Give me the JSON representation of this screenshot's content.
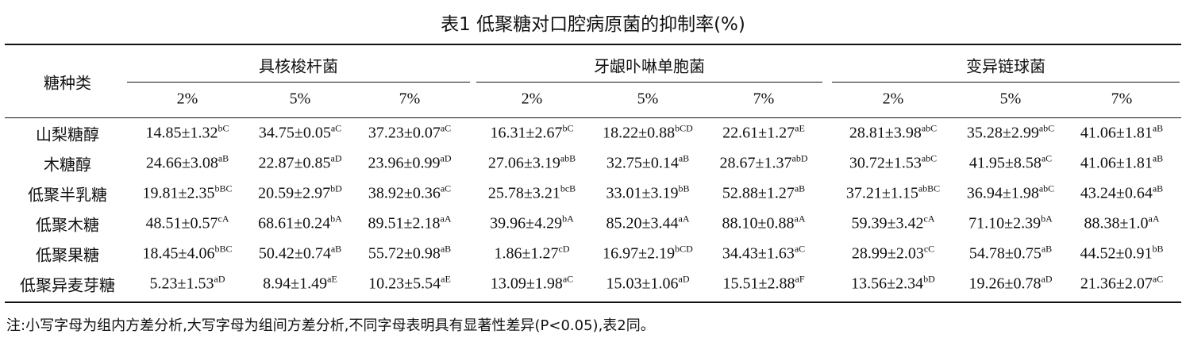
{
  "title": "表1 低聚糖对口腔病原菌的抑制率(%)",
  "table": {
    "row_header": "糖种类",
    "groups": [
      {
        "name": "具核梭杆菌",
        "columns": [
          "2%",
          "5%",
          "7%"
        ]
      },
      {
        "name": "牙龈卟啉单胞菌",
        "columns": [
          "2%",
          "5%",
          "7%"
        ]
      },
      {
        "name": "变异链球菌",
        "columns": [
          "2%",
          "5%",
          "7%"
        ]
      }
    ],
    "rows": [
      {
        "label": "山梨糖醇",
        "cells": [
          {
            "value": "14.85±1.32",
            "sup": "bC"
          },
          {
            "value": "34.75±0.05",
            "sup": "aC"
          },
          {
            "value": "37.23±0.07",
            "sup": "aC"
          },
          {
            "value": "16.31±2.67",
            "sup": "bC"
          },
          {
            "value": "18.22±0.88",
            "sup": "bCD"
          },
          {
            "value": "22.61±1.27",
            "sup": "aE"
          },
          {
            "value": "28.81±3.98",
            "sup": "abC"
          },
          {
            "value": "35.28±2.99",
            "sup": "abC"
          },
          {
            "value": "41.06±1.81",
            "sup": "aB"
          }
        ]
      },
      {
        "label": "木糖醇",
        "cells": [
          {
            "value": "24.66±3.08",
            "sup": "aB"
          },
          {
            "value": "22.87±0.85",
            "sup": "aD"
          },
          {
            "value": "23.96±0.99",
            "sup": "aD"
          },
          {
            "value": "27.06±3.19",
            "sup": "abB"
          },
          {
            "value": "32.75±0.14",
            "sup": "aB"
          },
          {
            "value": "28.67±1.37",
            "sup": "abD"
          },
          {
            "value": "30.72±1.53",
            "sup": "abC"
          },
          {
            "value": "41.95±8.58",
            "sup": "aC"
          },
          {
            "value": "41.06±1.81",
            "sup": "aB"
          }
        ]
      },
      {
        "label": "低聚半乳糖",
        "cells": [
          {
            "value": "19.81±2.35",
            "sup": "bBC"
          },
          {
            "value": "20.59±2.97",
            "sup": "bD"
          },
          {
            "value": "38.92±0.36",
            "sup": "aC"
          },
          {
            "value": "25.78±3.21",
            "sup": "bcB"
          },
          {
            "value": "33.01±3.19",
            "sup": "bB"
          },
          {
            "value": "52.88±1.27",
            "sup": "aB"
          },
          {
            "value": "37.21±1.15",
            "sup": "abBC"
          },
          {
            "value": "36.94±1.98",
            "sup": "abC"
          },
          {
            "value": "43.24±0.64",
            "sup": "aB"
          }
        ]
      },
      {
        "label": "低聚木糖",
        "cells": [
          {
            "value": "48.51±0.57",
            "sup": "cA"
          },
          {
            "value": "68.61±0.24",
            "sup": "bA"
          },
          {
            "value": "89.51±2.18",
            "sup": "aA"
          },
          {
            "value": "39.96±4.29",
            "sup": "bA"
          },
          {
            "value": "85.20±3.44",
            "sup": "aA"
          },
          {
            "value": "88.10±0.88",
            "sup": "aA"
          },
          {
            "value": "59.39±3.42",
            "sup": "cA"
          },
          {
            "value": "71.10±2.39",
            "sup": "bA"
          },
          {
            "value": "88.38±1.0",
            "sup": "aA"
          }
        ]
      },
      {
        "label": "低聚果糖",
        "cells": [
          {
            "value": "18.45±4.06",
            "sup": "bBC"
          },
          {
            "value": "50.42±0.74",
            "sup": "aB"
          },
          {
            "value": "55.72±0.98",
            "sup": "aB"
          },
          {
            "value": "1.86±1.27",
            "sup": "cD"
          },
          {
            "value": "16.97±2.19",
            "sup": "bCD"
          },
          {
            "value": "34.43±1.63",
            "sup": "aC"
          },
          {
            "value": "28.99±2.03",
            "sup": "cC"
          },
          {
            "value": "54.78±0.75",
            "sup": "aB"
          },
          {
            "value": "44.52±0.91",
            "sup": "bB"
          }
        ]
      },
      {
        "label": "低聚异麦芽糖",
        "cells": [
          {
            "value": "5.23±1.53",
            "sup": "aD"
          },
          {
            "value": "8.94±1.49",
            "sup": "aE"
          },
          {
            "value": "10.23±5.54",
            "sup": "aE"
          },
          {
            "value": "13.09±1.98",
            "sup": "aC"
          },
          {
            "value": "15.03±1.06",
            "sup": "aD"
          },
          {
            "value": "15.51±2.88",
            "sup": "aF"
          },
          {
            "value": "13.56±2.34",
            "sup": "bD"
          },
          {
            "value": "19.26±0.78",
            "sup": "aD"
          },
          {
            "value": "21.36±2.07",
            "sup": "aC"
          }
        ]
      }
    ]
  },
  "note": "注:小写字母为组内方差分析,大写字母为组间方差分析,不同字母表明具有显著性差异(P<0.05),表2同。"
}
